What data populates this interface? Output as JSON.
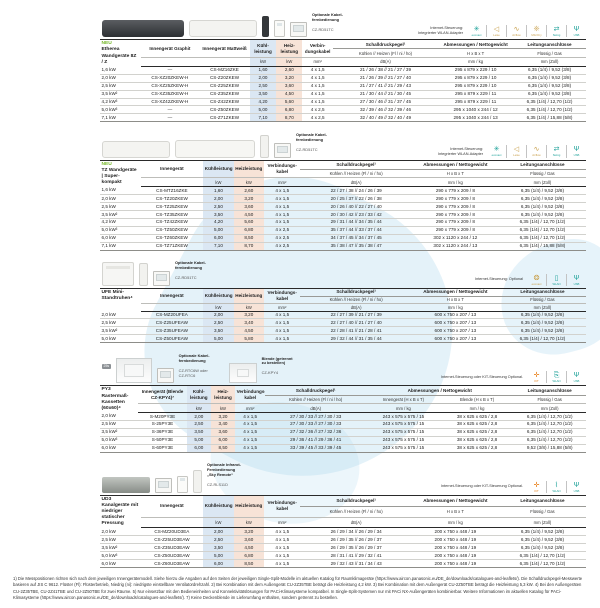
{
  "shared": {
    "sound_header": "Schalldruckpegel¹",
    "sound_sub": "Kühlen // Heizen (Fl / ni / ho)",
    "sound_unit": "dB(A)",
    "dim_header": "Abmessungen / Nettogewicht",
    "dim_sub": "H x B x T",
    "dim_unit": "mm / kg",
    "conn_header": "Leitungsanschlüsse",
    "conn_sub": "Flüssig / Gas",
    "conn_unit": "mm (Zoll)",
    "kw_unit": "kW",
    "mm2_unit": "mm²",
    "neu_badge": "NEU"
  },
  "sections": [
    {
      "title": "Etherea Wandgeräte 8Z / Z",
      "remote_title": "Optionale Kabel-\nfernbedienung",
      "remote_model": "CZ-RD51TC",
      "internet_note": "Internet-Steuerung:\nIntegrierter WLAN-Adapter",
      "icons": [
        {
          "name": "econavi-icon",
          "glyph": "✳",
          "color": "#1fa29a",
          "label": "econavi"
        },
        {
          "name": "quiet-icon",
          "glyph": "◁",
          "color": "#c9a14e",
          "label": "Leise"
        },
        {
          "name": "airflow-icon",
          "glyph": "∿",
          "color": "#c9a14e",
          "label": "Airflow"
        },
        {
          "name": "mild-dry-icon",
          "glyph": "❊",
          "color": "#c9a14e",
          "label": "Mild Dry"
        },
        {
          "name": "swing-icon",
          "glyph": "⇄",
          "color": "#1fa29a",
          "label": "Swing"
        },
        {
          "name": "usb-icon",
          "glyph": "Ψ",
          "color": "#1fa29a",
          "label": "USB"
        }
      ],
      "col_model_a": "Innengerät Graphit",
      "col_model_b": "Innengerät Mattweiß",
      "col_cool": "Kühl-leistung",
      "col_heat": "Heiz-leistung",
      "col_cable": "Verbin-dungskabel",
      "rows": [
        [
          "1,6 kW",
          "—",
          "CS-MZ16ZKE",
          "1,60",
          "2,60",
          "4 x 1,5",
          "21 / 26 / 38 // 21 / 27 / 39",
          "295 x 879 x 229 / 10",
          "6,35 (1/4) / 9,52 (3/8)"
        ],
        [
          "2,0 kW",
          "CS-XZ20ZKEW-H",
          "CS-Z20ZKEW",
          "2,00",
          "3,20",
          "4 x 1,5",
          "21 / 26 / 39 // 21 / 27 / 40",
          "295 x 879 x 229 / 10",
          "6,35 (1/4) / 9,52 (3/8)"
        ],
        [
          "2,5 kW",
          "CS-XZ25ZKEW-H",
          "CS-Z25ZKEW",
          "2,50",
          "3,60",
          "4 x 1,5",
          "21 / 27 / 41 // 21 / 29 / 43",
          "295 x 879 x 229 / 10",
          "6,35 (1/4) / 9,52 (3/8)"
        ],
        [
          "3,5 kW²",
          "CS-XZ35ZKEW-H",
          "CS-Z35ZKEW",
          "3,50",
          "4,50",
          "4 x 1,5",
          "21 / 30 / 44 // 21 / 30 / 45",
          "295 x 879 x 229 / 11",
          "6,35 (1/4) / 9,52 (3/8)"
        ],
        [
          "4,2 kW³",
          "CS-XZ42ZKEW-H",
          "CS-Z42ZKEW",
          "4,20",
          "5,60",
          "4 x 1,5",
          "27 / 30 / 46 // 31 / 37 / 45",
          "295 x 879 x 229 / 11",
          "6,35 (1/4) / 12,70 (1/2)"
        ],
        [
          "5,0 kW³",
          "—",
          "CS-Z50ZKEW",
          "5,00",
          "6,80",
          "4 x 2,5",
          "32 / 39 / 46 // 32 / 39 / 46",
          "295 x 1040 x 244 / 12",
          "6,35 (1/4) / 12,70 (1/2)"
        ],
        [
          "7,1 kW",
          "—",
          "CS-Z71ZKEW",
          "7,10",
          "8,70",
          "4 x 2,5",
          "32 / 40 / 49 // 32 / 40 / 49",
          "295 x 1040 x 244 / 13",
          "6,35 (1/4) / 15,88 (5/8)"
        ]
      ]
    },
    {
      "title": "TZ Wandgeräte | Super-kompakt",
      "remote_title": "Optionale Kabel-\nfernbedienung",
      "remote_model": "CZ-RD51TC",
      "internet_note": "Internet-Steuerung:\nIntegrierter WLAN-Adapter",
      "icons": [
        {
          "name": "econavi-icon",
          "glyph": "✳",
          "color": "#1fa29a",
          "label": "econavi"
        },
        {
          "name": "quiet-icon",
          "glyph": "◁",
          "color": "#c9a14e",
          "label": "Leise"
        },
        {
          "name": "airflow-icon",
          "glyph": "∿",
          "color": "#c9a14e",
          "label": "Airflow"
        },
        {
          "name": "swing-icon",
          "glyph": "⇄",
          "color": "#1fa29a",
          "label": "Swing"
        },
        {
          "name": "usb-icon",
          "glyph": "Ψ",
          "color": "#1fa29a",
          "label": "USB"
        }
      ],
      "col_model": "Innengerät",
      "col_cool": "Kühlleistung",
      "col_heat": "Heizleistung",
      "col_cable": "Verbindungs-kabel",
      "rows": [
        [
          "1,6 kW",
          "CS-MTZ16ZKE",
          "1,60",
          "2,60",
          "4 x 1,5",
          "22 / 27 / 38 // 24 / 26 / 39",
          "290 x 779 x 209 / 8",
          "6,35 (1/4) / 9,52 (3/8)"
        ],
        [
          "2,0 kW",
          "CS-TZ20ZKEW",
          "2,00",
          "3,20",
          "4 x 1,5",
          "20 / 25 / 37 // 22 / 26 / 38",
          "290 x 779 x 209 / 8",
          "6,35 (1/4) / 9,52 (3/8)"
        ],
        [
          "2,5 kW",
          "CS-TZ25ZKEW",
          "2,50",
          "3,60",
          "4 x 1,5",
          "20 / 26 / 40 // 22 / 27 / 40",
          "290 x 779 x 209 / 8",
          "6,35 (1/4) / 9,52 (3/8)"
        ],
        [
          "3,5 kW²",
          "CS-TZ35ZKEW",
          "3,50",
          "4,50",
          "4 x 1,5",
          "20 / 30 / 42 // 23 / 33 / 42",
          "290 x 779 x 209 / 8",
          "6,35 (1/4) / 9,52 (3/8)"
        ],
        [
          "4,2 kW",
          "CS-TZ42ZKEW",
          "4,20",
          "5,60",
          "4 x 1,5",
          "29 / 31 / 44 // 34 / 35 / 44",
          "290 x 779 x 209 / 8",
          "6,35 (1/4) / 12,70 (1/2)"
        ],
        [
          "5,0 kW³",
          "CS-TZ50ZKEW",
          "5,00",
          "6,80",
          "4 x 2,5",
          "35 / 37 / 44 // 33 / 37 / 44",
          "290 x 779 x 209 / 8",
          "6,35 (1/4) / 12,70 (1/2)"
        ],
        [
          "6,0 kW",
          "CS-TZ60ZKEW",
          "6,00",
          "8,50",
          "4 x 2,5",
          "34 / 37 / 45 // 34 / 37 / 45",
          "302 x 1120 x 244 / 12",
          "6,35 (1/4) / 12,70 (1/2)"
        ],
        [
          "7,1 kW",
          "CS-TZ71ZKEW",
          "7,10",
          "8,70",
          "4 x 2,5",
          "35 / 38 / 47 // 35 / 38 / 47",
          "302 x 1120 x 244 / 13",
          "6,35 (1/4) / 15,88 (5/8)"
        ]
      ]
    },
    {
      "title": "UFE Mini-Standtruhen⁴",
      "remote_title": "Optionale Kabel-\nfernbedienung",
      "remote_model": "CZ-RD51TC",
      "internet_note": "Internet-Steuerung: Optional",
      "icons": [
        {
          "name": "econavi-icon",
          "glyph": "❂",
          "color": "#c9a14e",
          "label": "econavi"
        },
        {
          "name": "wlan-icon",
          "glyph": "▯",
          "color": "#1fa29a",
          "label": "WLAN"
        },
        {
          "name": "usb-icon",
          "glyph": "Ψ",
          "color": "#1fa29a",
          "label": "USB"
        }
      ],
      "col_model": "Innengerät",
      "col_cool": "Kühlleistung",
      "col_heat": "Heizleistung",
      "col_cable": "Verbindungs-kabel",
      "rows": [
        [
          "2,0 kW",
          "CS-MZ20UFEA",
          "2,00",
          "3,20",
          "4 x 1,5",
          "22 / 27 / 39 // 21 / 27 / 39",
          "600 x 750 x 207 / 13",
          "6,35 (1/4) / 9,52 (3/8)"
        ],
        [
          "2,5 kW",
          "CS-Z25UFEAW",
          "2,50",
          "3,40",
          "4 x 1,5",
          "22 / 27 / 40 // 21 / 27 / 40",
          "600 x 750 x 207 / 13",
          "6,35 (1/4) / 9,52 (3/8)"
        ],
        [
          "3,5 kW²",
          "CS-Z35UFEAW",
          "3,50",
          "4,50",
          "4 x 1,5",
          "22 / 28 / 41 // 21 / 28 / 41",
          "600 x 750 x 207 / 13",
          "6,35 (1/4) / 9,52 (3/8)"
        ],
        [
          "5,0 kW",
          "CS-Z50UFEAW",
          "5,00",
          "5,80",
          "4 x 1,5",
          "29 / 32 / 44 // 31 / 35 / 44",
          "600 x 750 x 207 / 13",
          "6,35 (1/4) / 12,70 (1/2)"
        ]
      ]
    },
    {
      "title": "PY3 Rastermaß-Kassetten (60x60)⁴",
      "badge_tag": "25s",
      "remote_title": "Optionale Kabel-\nfernbedienung",
      "remote_model": "CZ-RTC6W oder\nCZ-RTC6",
      "remote2_title": "Blende (getrennt\nzu bestellen)",
      "remote2_model": "CZ-KPY4",
      "internet_note": "Internet-Steuerung oder KIT-Steuerung Optional.",
      "icons": [
        {
          "name": "kit-icon",
          "glyph": "✛",
          "color": "#e8821e",
          "label": "KIT"
        },
        {
          "name": "wlan-icon",
          "glyph": "⎘",
          "color": "#1fa29a",
          "label": "WLAN"
        },
        {
          "name": "usb-icon",
          "glyph": "Ψ",
          "color": "#1fa29a",
          "label": "USB"
        }
      ],
      "col_model": "Innengerät (Blende CZ-KPY4)⁷",
      "col_cool": "Kühl-leistung",
      "col_heat": "Heiz-leistung",
      "col_cable": "Verbindungs-kabel",
      "dim_sub_a": "Innengerät (H x B x T)",
      "dim_sub_b": "Blende (H x B x T)",
      "rows": [
        [
          "2,0 kW",
          "S-M20PY3E",
          "2,00",
          "3,20",
          "4 x 1,5",
          "27 / 30 / 33 // 27 / 30 / 33",
          "243 x 575 x 575 / 15",
          "38 x 625 x 625 / 2,8",
          "6,35 (1/4) / 12,70 (1/2)"
        ],
        [
          "2,5 kW",
          "S-25PY3E",
          "2,50",
          "3,40",
          "4 x 1,5",
          "27 / 30 / 33 // 27 / 30 / 33",
          "243 x 575 x 575 / 15",
          "38 x 625 x 625 / 2,8",
          "6,35 (1/4) / 12,70 (1/2)"
        ],
        [
          "3,5 kW²",
          "S-36PY3E",
          "3,50",
          "3,60",
          "4 x 1,5",
          "27 / 32 / 36 // 27 / 32 / 36",
          "243 x 575 x 575 / 15",
          "38 x 625 x 625 / 2,8",
          "6,35 (1/4) / 12,70 (1/2)"
        ],
        [
          "5,0 kW³",
          "S-50PY3E",
          "5,00",
          "6,00",
          "4 x 1,5",
          "29 / 36 / 41 // 29 / 36 / 41",
          "243 x 575 x 575 / 15",
          "38 x 625 x 625 / 2,8",
          "6,35 (1/4) / 12,70 (1/2)"
        ],
        [
          "6,0 kW",
          "S-60PY3E",
          "6,00",
          "8,50",
          "4 x 1,5",
          "33 / 39 / 45 // 33 / 39 / 45",
          "243 x 575 x 575 / 15",
          "38 x 625 x 625 / 2,8",
          "9,52 (3/8) / 15,88 (5/8)"
        ]
      ]
    },
    {
      "title": "UD3 Kanalgeräte mit niedriger statischer Pressung",
      "remote_title": "Optionale Infrarot-\nFernbedienung\n„Sky Remote“",
      "remote_model": "CZ-RLS11D",
      "internet_note": "Internet-Steuerung oder KIT-Steuerung Optional.",
      "icons": [
        {
          "name": "kit-icon",
          "glyph": "✛",
          "color": "#e8821e",
          "label": "KIT"
        },
        {
          "name": "wlan-icon",
          "glyph": "⌇",
          "color": "#1fa29a",
          "label": "WLAN"
        },
        {
          "name": "usb-icon",
          "glyph": "Ψ",
          "color": "#1fa29a",
          "label": "USB"
        }
      ],
      "col_model": "Innengerät",
      "col_cool": "Kühlleistung",
      "col_heat": "Heizleistung",
      "col_cable": "Verbindungs-kabel",
      "rows": [
        [
          "2,0 kW",
          "CS-MZ20UD3EA",
          "2,00",
          "3,20",
          "4 x 1,5",
          "26 / 29 / 34 // 26 / 29 / 34",
          "200 x 750 x 448 / 19",
          "6,35 (1/4) / 9,52 (3/8)"
        ],
        [
          "2,5 kW",
          "CS-Z25UD3EAW",
          "2,50",
          "3,60",
          "4 x 1,5",
          "26 / 29 / 35 // 26 / 29 / 37",
          "200 x 750 x 448 / 19",
          "6,35 (1/4) / 9,52 (3/8)"
        ],
        [
          "3,5 kW²",
          "CS-Z35UD3EAW",
          "3,50",
          "4,50",
          "4 x 1,5",
          "26 / 29 / 35 // 26 / 29 / 37",
          "200 x 750 x 448 / 19",
          "6,35 (1/4) / 9,52 (3/8)"
        ],
        [
          "5,0 kW³",
          "CS-Z50UD3EAW",
          "5,00",
          "6,80",
          "4 x 1,5",
          "28 / 31 / 41 // 29 / 32 / 41",
          "200 x 750 x 448 / 19",
          "6,35 (1/4) / 12,70 (1/2)"
        ],
        [
          "6,0 kW",
          "CS-Z60UD3EAW",
          "6,00",
          "8,50",
          "4 x 1,5",
          "29 / 32 / 43 // 31 / 34 / 43",
          "200 x 750 x 448 / 19",
          "6,35 (1/4) / 12,70 (1/2)"
        ]
      ]
    }
  ],
  "footer": {
    "text": "1) Die Messpositionen richten sich nach dem jeweiligen Innengerätemodell. Siehe hierzu die Angaben auf den Seiten der jeweiligen Single-Split-Modelle im aktuellen Katalog für Raumklimageräte (https://www.aircon.panasonic.eu/DE_de/downloads/catalogues-and-leaflets/). Die Schalldruckpegel-Messwerte basieren auf JIS C 9612. Flüster (Fl): Flüsterbetrieb, Niedrig (ni): niedrigste einstellbare Ventilatordrehzahl. 2) Bei Kombination mit dem Außengerät CU-2Z35TBE beträgt die Heizleistung 4,2 kW. 3) Bei Kombination mit dem Außengerät CU-2Z50TBE beträgt die Heizleistung 5,3 kW. 4) Bei den Außengeräten CU-2Z35TBE, CU-2Z41TBE und CU-2Z50TBE für zwei Räume. 5) Nur einsetzbar mit den Bedieneinheiten und Konnektivitätslösungen für PACi-Klimasysteme kompatibel. In Single-Split-Systemen nur mit PACi NX-Außengeräten kombinierbar. Weitere Informationen im aktuellen Katalog für PACi-Klimasysteme (https://www.aircon.panasonic.eu/DE_de/downloads/catalogues-and-leaflets/). 7) Keine Deckenblende im Lieferumfang enthalten, sondern getrennt zu bestellen."
  }
}
